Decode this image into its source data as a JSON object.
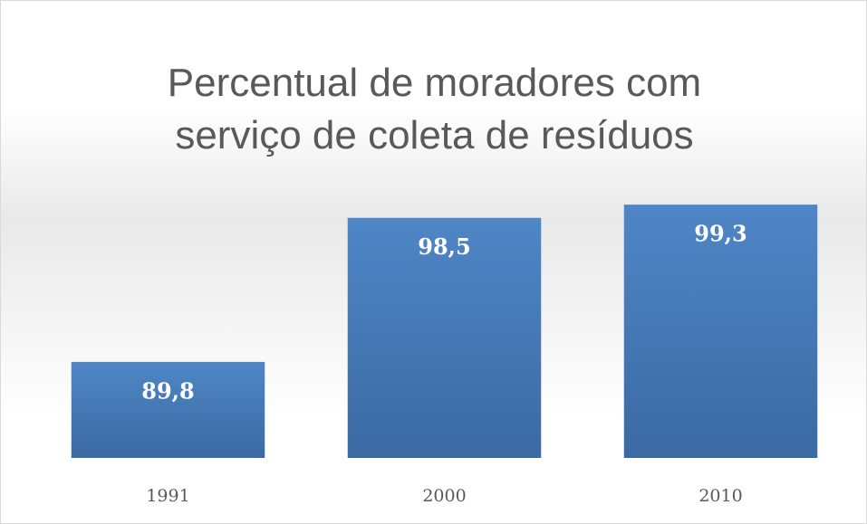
{
  "chart_data": {
    "type": "bar",
    "title": "Percentual de moradores com serviço de coleta de resíduos",
    "categories": [
      "1991",
      "2000",
      "2010"
    ],
    "values": [
      89.8,
      98.5,
      99.3
    ],
    "value_labels": [
      "89,8",
      "98,5",
      "99,3"
    ],
    "color": "#4a7ebb",
    "ylim": [
      84,
      101
    ]
  }
}
